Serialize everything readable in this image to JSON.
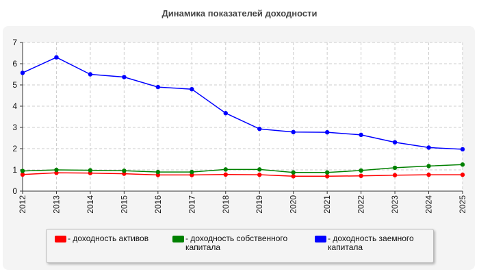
{
  "chart_data": {
    "type": "line",
    "title": "Динамика показателей доходности",
    "x": [
      "2012",
      "2013",
      "2014",
      "2015",
      "2016",
      "2017",
      "2018",
      "2019",
      "2020",
      "2021",
      "2022",
      "2023",
      "2024",
      "2025"
    ],
    "ylim": [
      0,
      7
    ],
    "yticks": [
      0,
      1,
      2,
      3,
      4,
      5,
      6,
      7
    ],
    "grid": true,
    "legend_position": "bottom",
    "series": [
      {
        "name": "- доходность активов",
        "color": "#ff0000",
        "values": [
          0.78,
          0.86,
          0.85,
          0.82,
          0.76,
          0.76,
          0.78,
          0.77,
          0.7,
          0.7,
          0.72,
          0.75,
          0.77,
          0.77
        ]
      },
      {
        "name": "- доходность собственного капитала",
        "color": "#008000",
        "values": [
          0.95,
          1.0,
          0.98,
          0.96,
          0.9,
          0.9,
          1.02,
          1.02,
          0.88,
          0.88,
          0.97,
          1.1,
          1.18,
          1.25
        ]
      },
      {
        "name": "- доходность заемного капитала",
        "color": "#0000ff",
        "values": [
          5.57,
          6.3,
          5.5,
          5.37,
          4.9,
          4.8,
          3.67,
          2.93,
          2.78,
          2.77,
          2.65,
          2.3,
          2.05,
          1.97
        ]
      }
    ]
  }
}
